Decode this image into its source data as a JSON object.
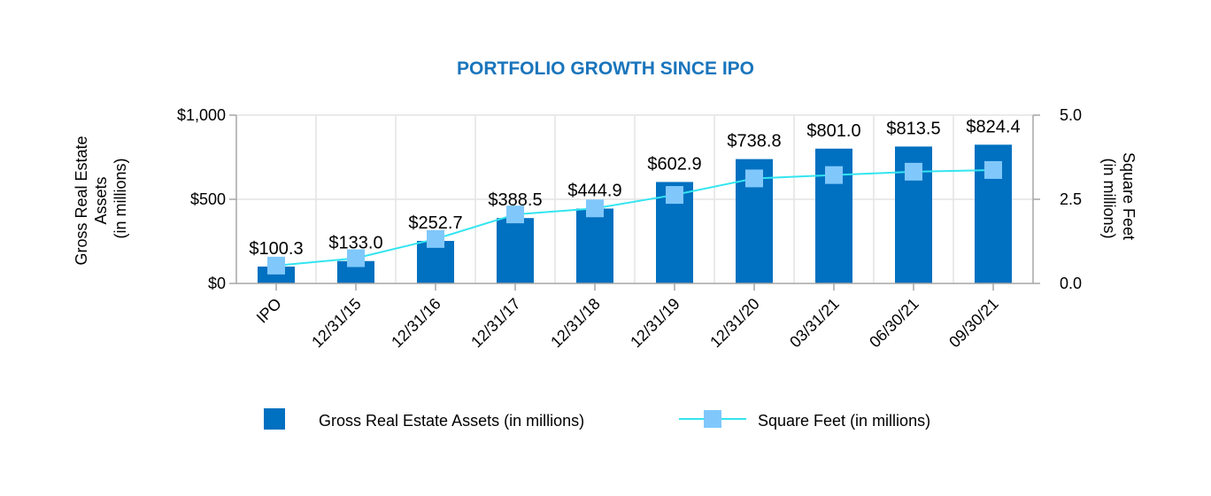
{
  "chart_data": {
    "type": "bar",
    "title": "PORTFOLIO GROWTH SINCE IPO",
    "categories": [
      "IPO",
      "12/31/15",
      "12/31/16",
      "12/31/17",
      "12/31/18",
      "12/31/19",
      "12/31/20",
      "03/31/21",
      "06/30/21",
      "09/30/21"
    ],
    "series": [
      {
        "name": "Gross Real Estate Assets (in millions)",
        "type": "bar",
        "axis": "left",
        "color": "#0070c0",
        "values": [
          100.3,
          133.0,
          252.7,
          388.5,
          444.9,
          602.9,
          738.8,
          801.0,
          813.5,
          824.4
        ],
        "labels": [
          "$100.3",
          "$133.0",
          "$252.7",
          "$388.5",
          "$444.9",
          "$602.9",
          "$738.8",
          "$801.0",
          "$813.5",
          "$824.4"
        ]
      },
      {
        "name": "Square Feet (in millions)",
        "type": "line",
        "axis": "right",
        "color": "#33e5f0",
        "marker_color": "#80c8fb",
        "values": [
          0.53,
          0.75,
          1.32,
          2.05,
          2.23,
          2.63,
          3.12,
          3.22,
          3.32,
          3.37
        ]
      }
    ],
    "y_left": {
      "label_lines": [
        "Gross Real Estate",
        "Assets",
        "(in millions)"
      ],
      "ylim": [
        0,
        1000
      ],
      "ticks": [
        0,
        500,
        1000
      ],
      "tick_labels": [
        "$0",
        "$500",
        "$1,000"
      ]
    },
    "y_right": {
      "label_lines": [
        "Square Feet",
        "(in millions)"
      ],
      "ylim": [
        0,
        5
      ],
      "ticks": [
        0,
        2.5,
        5
      ],
      "tick_labels": [
        "0.0",
        "2.5",
        "5.0"
      ]
    },
    "grid": true,
    "legend_position": "bottom"
  }
}
